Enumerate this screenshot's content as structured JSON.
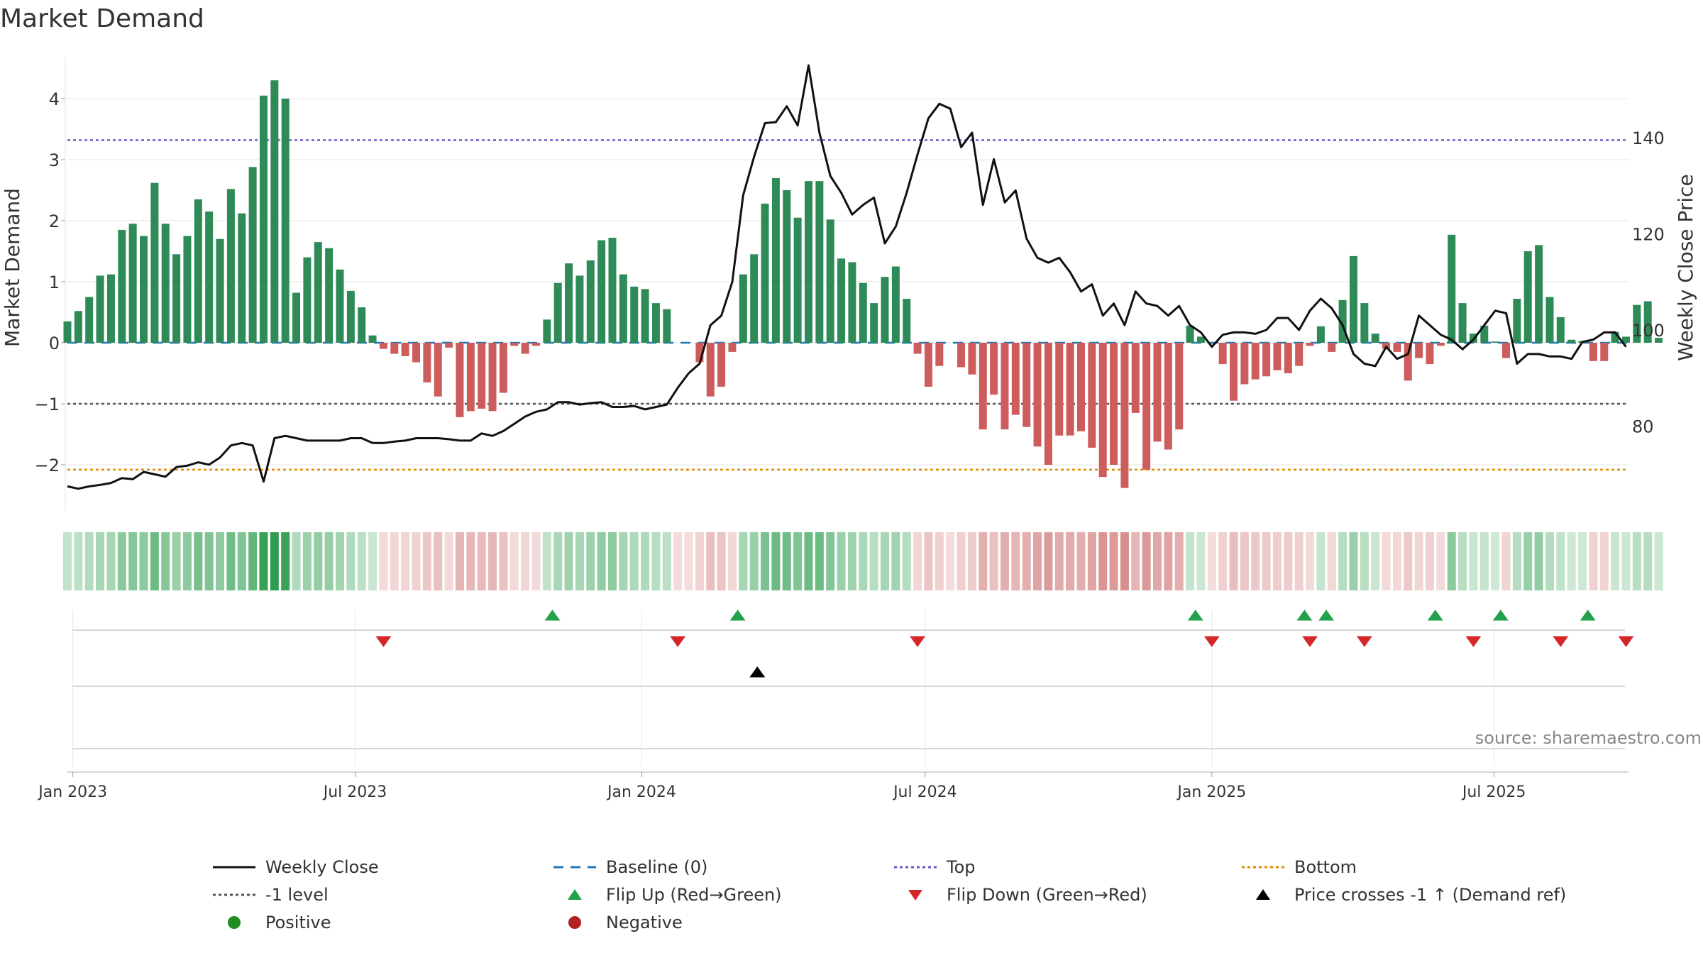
{
  "chart_data": {
    "type": "bar",
    "title": "Market Demand",
    "ylabel": "Market Demand",
    "y2label": "Weekly Close Price",
    "source": "source: sharemaestro.com",
    "ylim": [
      -2.8,
      4.6
    ],
    "y2lim": [
      62.5,
      155.5
    ],
    "yticks": [
      -2,
      -1,
      0,
      1,
      2,
      3,
      4
    ],
    "ytick_labels": [
      "−2",
      "−1",
      "0",
      "1",
      "2",
      "3",
      "4"
    ],
    "y2ticks": [
      80,
      100,
      120,
      140
    ],
    "y2tick_labels": [
      "80",
      "100",
      "120",
      "140"
    ],
    "xticks": [
      {
        "week": 0.5,
        "label": "Jan 2023"
      },
      {
        "week": 26.4,
        "label": "Jul 2023"
      },
      {
        "week": 52.7,
        "label": "Jan 2024"
      },
      {
        "week": 78.7,
        "label": "Jul 2024"
      },
      {
        "week": 105.0,
        "label": "Jan 2025"
      },
      {
        "week": 130.9,
        "label": "Jul 2025"
      }
    ],
    "reference_lines": {
      "top": 3.32,
      "minus1": -1,
      "bottom": -2.08
    },
    "colors": {
      "positive_bar": "#2e8b57",
      "negative_bar": "#cd5c5c",
      "price_line": "#111111",
      "baseline": "#1f77b4",
      "top": "#6a5acd",
      "minus1": "#555555",
      "bottom": "#e08a00",
      "flip_up": "#23a04a",
      "flip_down": "#d62728",
      "cross": "#000000",
      "positive_dot": "#228b22",
      "negative_dot": "#b22222"
    },
    "series": [
      {
        "name": "Market Demand",
        "values": [
          0.35,
          0.52,
          0.75,
          1.1,
          1.12,
          1.85,
          1.95,
          1.75,
          2.62,
          1.95,
          1.45,
          1.75,
          2.35,
          2.15,
          1.7,
          2.52,
          2.12,
          2.88,
          4.05,
          4.3,
          4.0,
          0.82,
          1.4,
          1.65,
          1.55,
          1.2,
          0.85,
          0.58,
          0.12,
          -0.1,
          -0.18,
          -0.22,
          -0.32,
          -0.65,
          -0.88,
          -0.08,
          -1.22,
          -1.12,
          -1.08,
          -1.12,
          -0.82,
          -0.05,
          -0.18,
          -0.05,
          0.38,
          0.98,
          1.3,
          1.1,
          1.35,
          1.68,
          1.72,
          1.12,
          0.92,
          0.88,
          0.65,
          0.55,
          0,
          0,
          -0.32,
          -0.88,
          -0.72,
          -0.15,
          1.12,
          1.45,
          2.28,
          2.7,
          2.5,
          2.05,
          2.65,
          2.65,
          2.02,
          1.38,
          1.32,
          0.98,
          0.65,
          1.08,
          1.25,
          0.72,
          -0.18,
          -0.72,
          -0.38,
          0,
          -0.4,
          -0.52,
          -1.42,
          -0.85,
          -1.42,
          -1.18,
          -1.38,
          -1.7,
          -2.0,
          -1.52,
          -1.52,
          -1.45,
          -1.72,
          -2.2,
          -2.0,
          -2.38,
          -1.15,
          -2.08,
          -1.62,
          -1.75,
          -1.42,
          0.28,
          0.1,
          0,
          -0.35,
          -0.95,
          -0.68,
          -0.6,
          -0.55,
          -0.45,
          -0.5,
          -0.38,
          -0.05,
          0.27,
          -0.15,
          0.7,
          1.42,
          0.65,
          0.15,
          -0.1,
          -0.15,
          -0.62,
          -0.25,
          -0.35,
          -0.05,
          1.77,
          0.65,
          0.15,
          0.28,
          0.02,
          -0.25,
          0.72,
          1.5,
          1.6,
          0.75,
          0.42,
          0.05,
          0.03,
          -0.3,
          -0.3,
          0.18,
          0.1,
          0.62,
          0.68,
          0.08
        ]
      },
      {
        "name": "Weekly Close",
        "values": [
          67.5,
          67.0,
          67.5,
          67.8,
          68.2,
          69.2,
          69.0,
          70.5,
          70.0,
          69.5,
          71.5,
          71.8,
          72.5,
          72.0,
          73.5,
          76.0,
          76.5,
          76.0,
          68.5,
          77.5,
          78.0,
          77.5,
          77.0,
          77.0,
          77.0,
          77.0,
          77.5,
          77.5,
          76.5,
          76.5,
          76.8,
          77.0,
          77.5,
          77.5,
          77.5,
          77.3,
          77.0,
          77.0,
          78.5,
          78.0,
          79.0,
          80.5,
          82.0,
          83.0,
          83.5,
          85.0,
          85.0,
          84.5,
          84.8,
          85.0,
          84.0,
          84.0,
          84.2,
          83.5,
          84.0,
          84.5,
          88.0,
          91.0,
          93.0,
          101.0,
          103.0,
          110.0,
          128.0,
          136.0,
          143.0,
          143.2,
          146.5,
          142.5,
          155.0,
          141.0,
          132.0,
          128.5,
          124.0,
          126.0,
          127.5,
          118.0,
          121.5,
          128.5,
          136.5,
          144.0,
          147.0,
          146.0,
          138.0,
          141.0,
          126.0,
          135.5,
          126.5,
          129.0,
          119.0,
          115.0,
          114.0,
          115.0,
          112.0,
          108.0,
          109.5,
          103.0,
          105.5,
          101.0,
          108.0,
          105.5,
          105.0,
          103.0,
          105.0,
          101.0,
          99.5,
          96.5,
          99.0,
          99.5,
          99.5,
          99.2,
          100.0,
          102.5,
          102.5,
          100.0,
          104.0,
          106.5,
          104.5,
          101.0,
          95.0,
          93.0,
          92.5,
          96.5,
          94.0,
          95.0,
          103.0,
          101.0,
          99.0,
          98.0,
          96.0,
          98.0,
          101.0,
          104.0,
          103.5,
          93.0,
          95.0,
          95.0,
          94.5,
          94.5,
          94.0,
          97.5,
          98.0,
          99.5,
          99.5,
          96.5
        ]
      }
    ],
    "flip_up_weeks": [
      44.5,
      61.5,
      103.5,
      113.5,
      115.5,
      125.5,
      131.5,
      139.5
    ],
    "flip_down_weeks": [
      29.0,
      56.0,
      78.0,
      105.0,
      114.0,
      119.0,
      129.0,
      137.0,
      143.0
    ],
    "cross_weeks": [
      63.3
    ],
    "legend": [
      {
        "label": "Weekly Close",
        "marker": "solid-line",
        "color": "#111111"
      },
      {
        "label": "Baseline (0)",
        "marker": "dashed-line",
        "color": "#1f77b4"
      },
      {
        "label": "Top",
        "marker": "dotted-line",
        "color": "#6a5acd"
      },
      {
        "label": "Bottom",
        "marker": "dotted-line",
        "color": "#e08a00"
      },
      {
        "label": "-1 level",
        "marker": "dotted-line",
        "color": "#555555"
      },
      {
        "label": "Flip Up (Red→Green)",
        "marker": "triangle-up",
        "color": "#23a04a"
      },
      {
        "label": "Flip Down (Green→Red)",
        "marker": "triangle-down",
        "color": "#d62728"
      },
      {
        "label": "Price crosses -1 ↑ (Demand ref)",
        "marker": "triangle-up",
        "color": "#000000"
      },
      {
        "label": "Positive",
        "marker": "circle",
        "color": "#228b22"
      },
      {
        "label": "Negative",
        "marker": "circle",
        "color": "#b22222"
      }
    ]
  }
}
